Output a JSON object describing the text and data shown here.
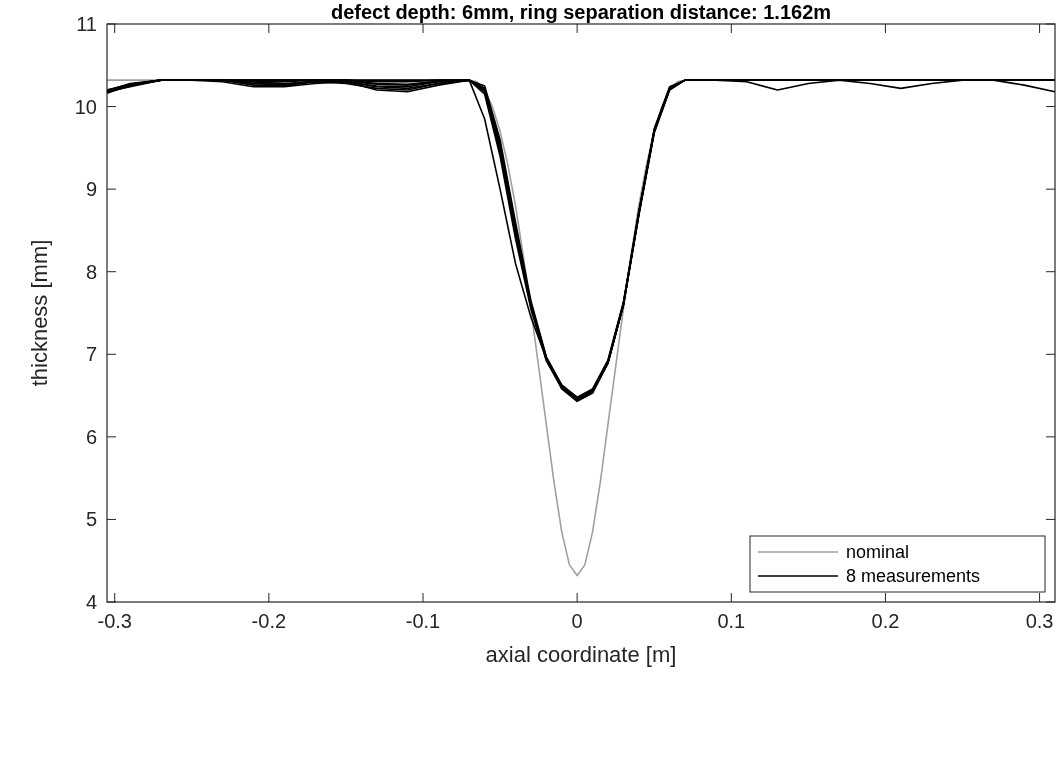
{
  "chart_data": {
    "type": "line",
    "title": "defect depth: 6mm, ring separation distance: 1.162m",
    "xlabel": "axial coordinate [m]",
    "ylabel": "thickness [mm]",
    "x": [
      -0.305,
      -0.29,
      -0.27,
      -0.25,
      -0.23,
      -0.21,
      -0.19,
      -0.17,
      -0.15,
      -0.13,
      -0.11,
      -0.09,
      -0.07,
      -0.06,
      -0.05,
      -0.04,
      -0.03,
      -0.02,
      -0.01,
      0,
      0.01,
      0.02,
      0.03,
      0.04,
      0.05,
      0.06,
      0.07,
      0.09,
      0.11,
      0.13,
      0.15,
      0.17,
      0.19,
      0.21,
      0.23,
      0.25,
      0.27,
      0.29,
      0.31
    ],
    "series": [
      {
        "name": "nominal",
        "color": "#a0a0a0",
        "x": [
          -0.305,
          -0.07,
          -0.065,
          -0.06,
          -0.055,
          -0.05,
          -0.045,
          -0.04,
          -0.035,
          -0.03,
          -0.025,
          -0.02,
          -0.015,
          -0.01,
          -0.005,
          0,
          0.005,
          0.01,
          0.015,
          0.02,
          0.025,
          0.03,
          0.035,
          0.04,
          0.045,
          0.05,
          0.055,
          0.06,
          0.065,
          0.07,
          0.31
        ],
        "values": [
          10.32,
          10.32,
          10.3,
          10.2,
          10.0,
          9.7,
          9.3,
          8.8,
          8.2,
          7.55,
          6.85,
          6.15,
          5.45,
          4.85,
          4.45,
          4.32,
          4.45,
          4.85,
          5.45,
          6.15,
          6.85,
          7.55,
          8.2,
          8.8,
          9.3,
          9.7,
          10.0,
          10.2,
          10.3,
          10.32,
          10.32
        ]
      },
      {
        "name": "8 measurements",
        "color": "#000000",
        "values": [
          10.18,
          10.24,
          10.32,
          10.32,
          10.32,
          10.28,
          10.26,
          10.3,
          10.3,
          10.24,
          10.22,
          10.28,
          10.32,
          10.2,
          9.5,
          8.5,
          7.6,
          6.95,
          6.6,
          6.45,
          6.55,
          6.9,
          7.6,
          8.7,
          9.7,
          10.22,
          10.32,
          10.32,
          10.3,
          10.2,
          10.28,
          10.32,
          10.28,
          10.22,
          10.28,
          10.32,
          10.32,
          10.26,
          10.18
        ]
      },
      {
        "color": "#000000",
        "values": [
          10.16,
          10.26,
          10.32,
          10.32,
          10.3,
          10.24,
          10.24,
          10.28,
          10.3,
          10.2,
          10.18,
          10.26,
          10.32,
          9.85,
          9.0,
          8.1,
          7.45,
          6.95,
          6.6,
          6.47,
          6.57,
          6.92,
          7.62,
          8.7,
          9.72,
          10.24,
          10.32,
          10.32,
          10.32,
          10.32,
          10.32,
          10.32,
          10.32,
          10.32,
          10.32,
          10.32,
          10.32,
          10.32,
          10.32
        ]
      },
      {
        "color": "#000000",
        "values": [
          10.2,
          10.27,
          10.32,
          10.32,
          10.32,
          10.3,
          10.28,
          10.3,
          10.28,
          10.22,
          10.2,
          10.28,
          10.32,
          10.18,
          9.45,
          8.45,
          7.58,
          6.93,
          6.58,
          6.43,
          6.53,
          6.9,
          7.6,
          8.68,
          9.68,
          10.2,
          10.32,
          10.32,
          10.32,
          10.32,
          10.32,
          10.32,
          10.32,
          10.32,
          10.32,
          10.32,
          10.32,
          10.32,
          10.32
        ]
      },
      {
        "color": "#000000",
        "values": [
          10.18,
          10.26,
          10.32,
          10.32,
          10.32,
          10.26,
          10.25,
          10.3,
          10.3,
          10.25,
          10.24,
          10.3,
          10.32,
          10.22,
          9.55,
          8.55,
          7.62,
          6.96,
          6.62,
          6.46,
          6.56,
          6.91,
          7.61,
          8.72,
          9.7,
          10.22,
          10.32,
          10.32,
          10.32,
          10.32,
          10.32,
          10.32,
          10.32,
          10.32,
          10.32,
          10.32,
          10.32,
          10.32,
          10.32
        ]
      },
      {
        "color": "#000000",
        "values": [
          10.17,
          10.25,
          10.32,
          10.32,
          10.32,
          10.28,
          10.27,
          10.31,
          10.31,
          10.27,
          10.26,
          10.3,
          10.32,
          10.15,
          9.4,
          8.4,
          7.55,
          6.92,
          6.6,
          6.44,
          6.54,
          6.89,
          7.59,
          8.69,
          9.69,
          10.21,
          10.32,
          10.32,
          10.32,
          10.32,
          10.32,
          10.32,
          10.32,
          10.32,
          10.32,
          10.32,
          10.32,
          10.32,
          10.32
        ]
      },
      {
        "color": "#000000",
        "values": [
          10.19,
          10.28,
          10.32,
          10.32,
          10.32,
          10.3,
          10.3,
          10.32,
          10.32,
          10.28,
          10.27,
          10.31,
          10.32,
          10.25,
          9.6,
          8.6,
          7.65,
          6.97,
          6.63,
          6.48,
          6.58,
          6.93,
          7.63,
          8.73,
          9.73,
          10.23,
          10.32,
          10.32,
          10.32,
          10.32,
          10.32,
          10.32,
          10.32,
          10.32,
          10.32,
          10.32,
          10.32,
          10.32,
          10.32
        ]
      },
      {
        "color": "#000000",
        "values": [
          10.18,
          10.27,
          10.32,
          10.32,
          10.32,
          10.32,
          10.32,
          10.32,
          10.32,
          10.3,
          10.3,
          10.32,
          10.32,
          10.2,
          9.5,
          8.52,
          7.6,
          6.94,
          6.61,
          6.45,
          6.55,
          6.9,
          7.6,
          8.7,
          9.7,
          10.22,
          10.32,
          10.32,
          10.32,
          10.32,
          10.32,
          10.32,
          10.32,
          10.32,
          10.32,
          10.32,
          10.32,
          10.32,
          10.32
        ]
      },
      {
        "color": "#000000",
        "values": [
          10.2,
          10.26,
          10.32,
          10.32,
          10.32,
          10.32,
          10.32,
          10.32,
          10.32,
          10.32,
          10.32,
          10.32,
          10.32,
          10.22,
          9.52,
          8.5,
          7.6,
          6.95,
          6.6,
          6.46,
          6.56,
          6.9,
          7.6,
          8.71,
          9.71,
          10.22,
          10.32,
          10.32,
          10.32,
          10.32,
          10.32,
          10.32,
          10.32,
          10.32,
          10.32,
          10.32,
          10.32,
          10.32,
          10.32
        ]
      }
    ],
    "xlim": [
      -0.305,
      0.31
    ],
    "xticks": [
      -0.3,
      -0.2,
      -0.1,
      0,
      0.1,
      0.2,
      0.3
    ],
    "ylim": [
      4,
      11
    ],
    "yticks": [
      4,
      5,
      6,
      7,
      8,
      9,
      10,
      11
    ],
    "grid": false,
    "legend": "bottom right",
    "marker": "none",
    "line_style": "solid"
  }
}
